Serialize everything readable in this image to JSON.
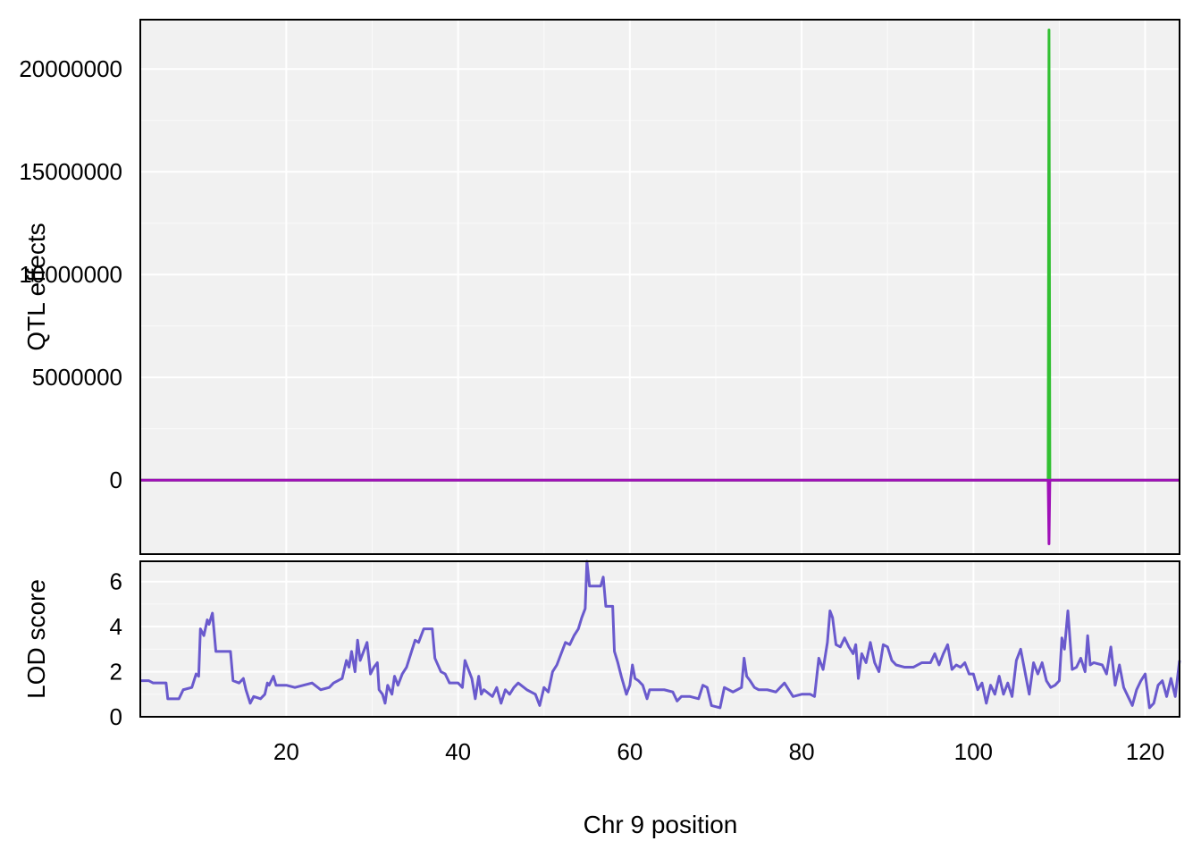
{
  "chart_data": [
    {
      "type": "line",
      "panel": "top",
      "ylabel": "QTL effects",
      "xlim": [
        3,
        124
      ],
      "ylim": [
        -3600000,
        22400000
      ],
      "grid": true,
      "background": "#f1f1f1",
      "x_ticks": [
        20,
        40,
        60,
        80,
        100,
        120
      ],
      "y_ticks": [
        0,
        5000000,
        10000000,
        15000000,
        20000000
      ],
      "y_tick_labels": [
        "0",
        "5000000",
        "10000000",
        "15000000",
        "20000000"
      ],
      "series": [
        {
          "color": "#32c032",
          "points": [
            [
              3,
              0
            ],
            [
              108.7,
              0
            ],
            [
              108.8,
              21900000
            ],
            [
              108.9,
              0
            ],
            [
              124,
              0
            ]
          ]
        },
        {
          "color": "#a010b8",
          "points": [
            [
              3,
              0
            ],
            [
              108.7,
              0
            ],
            [
              108.8,
              -3100000
            ],
            [
              108.9,
              0
            ],
            [
              124,
              0
            ]
          ]
        }
      ]
    },
    {
      "type": "line",
      "panel": "bottom",
      "ylabel": "LOD score",
      "xlabel": "Chr 9 position",
      "xlim": [
        3,
        124
      ],
      "ylim": [
        0,
        6.9
      ],
      "grid": true,
      "background": "#f1f1f1",
      "x_ticks": [
        20,
        40,
        60,
        80,
        100,
        120
      ],
      "x_tick_labels": [
        "20",
        "40",
        "60",
        "80",
        "100",
        "120"
      ],
      "y_ticks": [
        0,
        2,
        4,
        6
      ],
      "y_tick_labels": [
        "0",
        "2",
        "4",
        "6"
      ],
      "series": [
        {
          "color": "#6a5acd",
          "points": [
            [
              3,
              1.6
            ],
            [
              4,
              1.6
            ],
            [
              4.5,
              1.5
            ],
            [
              6,
              1.5
            ],
            [
              6.2,
              0.8
            ],
            [
              7.5,
              0.8
            ],
            [
              8,
              1.2
            ],
            [
              9,
              1.3
            ],
            [
              9.5,
              1.9
            ],
            [
              9.8,
              1.8
            ],
            [
              10,
              3.9
            ],
            [
              10.4,
              3.6
            ],
            [
              10.8,
              4.3
            ],
            [
              11,
              4.1
            ],
            [
              11.4,
              4.6
            ],
            [
              11.8,
              2.9
            ],
            [
              13.5,
              2.9
            ],
            [
              13.8,
              1.6
            ],
            [
              14.5,
              1.5
            ],
            [
              15,
              1.7
            ],
            [
              15.3,
              1.2
            ],
            [
              15.8,
              0.6
            ],
            [
              16.2,
              0.9
            ],
            [
              17,
              0.8
            ],
            [
              17.5,
              1.0
            ],
            [
              17.8,
              1.5
            ],
            [
              18,
              1.4
            ],
            [
              18.5,
              1.8
            ],
            [
              18.8,
              1.4
            ],
            [
              20,
              1.4
            ],
            [
              21,
              1.3
            ],
            [
              22,
              1.4
            ],
            [
              23,
              1.5
            ],
            [
              24,
              1.2
            ],
            [
              25,
              1.3
            ],
            [
              25.5,
              1.5
            ],
            [
              26.5,
              1.7
            ],
            [
              27,
              2.5
            ],
            [
              27.3,
              2.2
            ],
            [
              27.6,
              2.9
            ],
            [
              28,
              2.0
            ],
            [
              28.3,
              3.4
            ],
            [
              28.6,
              2.5
            ],
            [
              29,
              2.9
            ],
            [
              29.4,
              3.3
            ],
            [
              29.8,
              1.9
            ],
            [
              30.2,
              2.2
            ],
            [
              30.6,
              2.4
            ],
            [
              30.8,
              1.2
            ],
            [
              31.2,
              1.0
            ],
            [
              31.5,
              0.6
            ],
            [
              31.8,
              1.4
            ],
            [
              32.3,
              1.0
            ],
            [
              32.6,
              1.8
            ],
            [
              33,
              1.4
            ],
            [
              33.5,
              1.9
            ],
            [
              34,
              2.2
            ],
            [
              34.5,
              2.8
            ],
            [
              35,
              3.4
            ],
            [
              35.4,
              3.3
            ],
            [
              36,
              3.9
            ],
            [
              37,
              3.9
            ],
            [
              37.3,
              2.6
            ],
            [
              38,
              2.0
            ],
            [
              38.5,
              1.9
            ],
            [
              39,
              1.5
            ],
            [
              40,
              1.5
            ],
            [
              40.5,
              1.3
            ],
            [
              40.8,
              2.5
            ],
            [
              41.2,
              2.1
            ],
            [
              41.6,
              1.7
            ],
            [
              42,
              0.8
            ],
            [
              42.4,
              1.8
            ],
            [
              42.7,
              1.0
            ],
            [
              43,
              1.2
            ],
            [
              44,
              0.9
            ],
            [
              44.5,
              1.3
            ],
            [
              45,
              0.6
            ],
            [
              45.5,
              1.2
            ],
            [
              46,
              1.0
            ],
            [
              46.5,
              1.3
            ],
            [
              47,
              1.5
            ],
            [
              48,
              1.2
            ],
            [
              49,
              1.0
            ],
            [
              49.5,
              0.5
            ],
            [
              50,
              1.3
            ],
            [
              50.5,
              1.1
            ],
            [
              51,
              2.0
            ],
            [
              51.5,
              2.3
            ],
            [
              52,
              2.8
            ],
            [
              52.5,
              3.3
            ],
            [
              53,
              3.2
            ],
            [
              53.5,
              3.6
            ],
            [
              54,
              3.9
            ],
            [
              54.4,
              4.4
            ],
            [
              54.8,
              4.8
            ],
            [
              55,
              6.9
            ],
            [
              55.3,
              5.8
            ],
            [
              55.8,
              5.8
            ],
            [
              56.6,
              5.8
            ],
            [
              56.9,
              6.2
            ],
            [
              57.2,
              4.9
            ],
            [
              58,
              4.9
            ],
            [
              58.2,
              2.9
            ],
            [
              58.6,
              2.4
            ],
            [
              59,
              1.8
            ],
            [
              59.6,
              1.0
            ],
            [
              60,
              1.4
            ],
            [
              60.3,
              2.3
            ],
            [
              60.6,
              1.7
            ],
            [
              61,
              1.6
            ],
            [
              61.5,
              1.4
            ],
            [
              62,
              0.8
            ],
            [
              62.3,
              1.2
            ],
            [
              64,
              1.2
            ],
            [
              65,
              1.1
            ],
            [
              65.5,
              0.7
            ],
            [
              66,
              0.9
            ],
            [
              67,
              0.9
            ],
            [
              68,
              0.8
            ],
            [
              68.5,
              1.4
            ],
            [
              69,
              1.3
            ],
            [
              69.5,
              0.5
            ],
            [
              70.5,
              0.4
            ],
            [
              71,
              1.3
            ],
            [
              72,
              1.1
            ],
            [
              72.5,
              1.2
            ],
            [
              73,
              1.3
            ],
            [
              73.3,
              2.6
            ],
            [
              73.6,
              1.8
            ],
            [
              74,
              1.6
            ],
            [
              74.5,
              1.3
            ],
            [
              75,
              1.2
            ],
            [
              76,
              1.2
            ],
            [
              77,
              1.1
            ],
            [
              78,
              1.5
            ],
            [
              79,
              0.9
            ],
            [
              80,
              1.0
            ],
            [
              81,
              1.0
            ],
            [
              81.5,
              0.9
            ],
            [
              82,
              2.6
            ],
            [
              82.5,
              2.1
            ],
            [
              83,
              3.3
            ],
            [
              83.3,
              4.7
            ],
            [
              83.6,
              4.4
            ],
            [
              84,
              3.2
            ],
            [
              84.5,
              3.1
            ],
            [
              85,
              3.5
            ],
            [
              85.5,
              3.1
            ],
            [
              86,
              2.8
            ],
            [
              86.3,
              3.2
            ],
            [
              86.6,
              1.7
            ],
            [
              87,
              2.8
            ],
            [
              87.5,
              2.4
            ],
            [
              88,
              3.3
            ],
            [
              88.5,
              2.4
            ],
            [
              89,
              2.0
            ],
            [
              89.5,
              3.2
            ],
            [
              90,
              3.1
            ],
            [
              90.5,
              2.5
            ],
            [
              91,
              2.3
            ],
            [
              92,
              2.2
            ],
            [
              93,
              2.2
            ],
            [
              94,
              2.4
            ],
            [
              95,
              2.4
            ],
            [
              95.5,
              2.8
            ],
            [
              96,
              2.3
            ],
            [
              96.5,
              2.8
            ],
            [
              97,
              3.2
            ],
            [
              97.5,
              2.1
            ],
            [
              98,
              2.3
            ],
            [
              98.5,
              2.2
            ],
            [
              99,
              2.4
            ],
            [
              99.5,
              1.9
            ],
            [
              100,
              1.9
            ],
            [
              100.5,
              1.2
            ],
            [
              101,
              1.5
            ],
            [
              101.5,
              0.6
            ],
            [
              102,
              1.4
            ],
            [
              102.5,
              1.0
            ],
            [
              103,
              1.8
            ],
            [
              103.5,
              1.0
            ],
            [
              104,
              1.5
            ],
            [
              104.5,
              0.9
            ],
            [
              105,
              2.5
            ],
            [
              105.5,
              3.0
            ],
            [
              106,
              2.0
            ],
            [
              106.5,
              1.0
            ],
            [
              107,
              2.4
            ],
            [
              107.5,
              1.9
            ],
            [
              108,
              2.4
            ],
            [
              108.5,
              1.6
            ],
            [
              109,
              1.3
            ],
            [
              109.5,
              1.4
            ],
            [
              110,
              1.6
            ],
            [
              110.3,
              3.5
            ],
            [
              110.6,
              3.0
            ],
            [
              111,
              4.7
            ],
            [
              111.5,
              2.1
            ],
            [
              112,
              2.2
            ],
            [
              112.5,
              2.6
            ],
            [
              113,
              2.0
            ],
            [
              113.3,
              3.6
            ],
            [
              113.6,
              2.3
            ],
            [
              114,
              2.4
            ],
            [
              115,
              2.3
            ],
            [
              115.5,
              1.9
            ],
            [
              116,
              3.1
            ],
            [
              116.5,
              1.4
            ],
            [
              117,
              2.3
            ],
            [
              117.5,
              1.3
            ],
            [
              118,
              0.9
            ],
            [
              118.5,
              0.5
            ],
            [
              119,
              1.2
            ],
            [
              119.5,
              1.6
            ],
            [
              120,
              1.9
            ],
            [
              120.5,
              0.4
            ],
            [
              121,
              0.6
            ],
            [
              121.5,
              1.4
            ],
            [
              122,
              1.6
            ],
            [
              122.5,
              0.9
            ],
            [
              123,
              1.7
            ],
            [
              123.5,
              0.9
            ],
            [
              124,
              2.5
            ]
          ]
        }
      ]
    }
  ]
}
